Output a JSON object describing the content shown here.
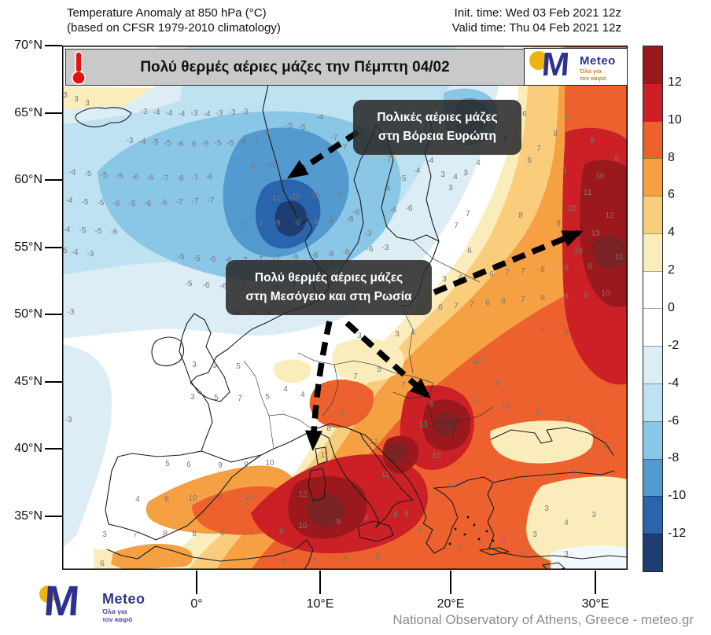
{
  "header": {
    "title_line1": "Temperature Anomaly at 850 hPa (°C)",
    "title_line2": "(based on CFSR 1979-2010 climatology)",
    "init_time": "Init. time: Wed 03 Feb 2021 12z",
    "valid_time": "Valid time: Thu 04 Feb 2021 12z"
  },
  "banner": {
    "text": "Πολύ θερμές αέριες μάζες την Πέμπτη 04/02",
    "icon": "thermometer-icon"
  },
  "logo": {
    "name": "Meteo",
    "tagline_line1": "Όλα για",
    "tagline_line2": "τον καιρό"
  },
  "annotations": [
    {
      "line1": "Πολικές αέριες μάζες",
      "line2": "στη Βόρεια Ευρώπη"
    },
    {
      "line1": "Πολύ θερμές αέριες μάζες",
      "line2": "στη Μεσόγειο και στη Ρωσία"
    }
  ],
  "footer": {
    "attribution": "National Observatory of Athens, Greece - meteo.gr"
  },
  "map": {
    "lat_ticks": [
      [
        "70°N",
        58
      ],
      [
        "65°N",
        144
      ],
      [
        "60°N",
        229
      ],
      [
        "55°N",
        315
      ],
      [
        "50°N",
        400
      ],
      [
        "45°N",
        486
      ],
      [
        "40°N",
        571
      ],
      [
        "35°N",
        657
      ]
    ],
    "lon_ticks": [
      [
        "0°",
        250
      ],
      [
        "10°E",
        407
      ],
      [
        "20°E",
        573
      ],
      [
        "30°E",
        757
      ]
    ],
    "values": [
      [
        4,
        66,
        "3"
      ],
      [
        18,
        71,
        "3"
      ],
      [
        32,
        76,
        "3"
      ],
      [
        104,
        87,
        "-3"
      ],
      [
        120,
        88,
        "-4"
      ],
      [
        136,
        89,
        "-4"
      ],
      [
        152,
        90,
        "-4"
      ],
      [
        168,
        89,
        "-3"
      ],
      [
        184,
        90,
        "-4"
      ],
      [
        200,
        89,
        "-3"
      ],
      [
        216,
        88,
        "-3"
      ],
      [
        232,
        87,
        "-3"
      ],
      [
        259,
        114,
        "-6"
      ],
      [
        289,
        105,
        "-5"
      ],
      [
        305,
        107,
        "-5"
      ],
      [
        328,
        94,
        "-4"
      ],
      [
        346,
        120,
        "-7"
      ],
      [
        358,
        132,
        "-7"
      ],
      [
        414,
        148,
        "-7"
      ],
      [
        433,
        172,
        "-5"
      ],
      [
        451,
        162,
        "-4"
      ],
      [
        468,
        149,
        "-4"
      ],
      [
        413,
        185,
        "-4"
      ],
      [
        389,
        242,
        "-3"
      ],
      [
        374,
        215,
        "-6"
      ],
      [
        86,
        124,
        "-3"
      ],
      [
        102,
        125,
        "-4"
      ],
      [
        118,
        126,
        "-5"
      ],
      [
        134,
        127,
        "-5"
      ],
      [
        150,
        128,
        "-6"
      ],
      [
        166,
        128,
        "-6"
      ],
      [
        182,
        128,
        "-5"
      ],
      [
        198,
        127,
        "-5"
      ],
      [
        214,
        127,
        "-5"
      ],
      [
        230,
        126,
        "-6"
      ],
      [
        246,
        125,
        "-7"
      ],
      [
        13,
        164,
        "-4"
      ],
      [
        33,
        166,
        "-5"
      ],
      [
        53,
        168,
        "-5"
      ],
      [
        73,
        169,
        "-5"
      ],
      [
        93,
        170,
        "-6"
      ],
      [
        112,
        171,
        "-6"
      ],
      [
        131,
        172,
        "-7"
      ],
      [
        150,
        172,
        "-8"
      ],
      [
        169,
        171,
        "-7"
      ],
      [
        187,
        170,
        "-6"
      ],
      [
        241,
        157,
        "-8"
      ],
      [
        264,
        155,
        "-10"
      ],
      [
        9,
        200,
        "-4"
      ],
      [
        29,
        202,
        "-5"
      ],
      [
        49,
        203,
        "-5"
      ],
      [
        69,
        204,
        "-6"
      ],
      [
        89,
        204,
        "-5"
      ],
      [
        109,
        204,
        "-6"
      ],
      [
        129,
        203,
        "-6"
      ],
      [
        149,
        202,
        "-7"
      ],
      [
        169,
        201,
        "-7"
      ],
      [
        189,
        200,
        "-7"
      ],
      [
        271,
        197,
        "-11"
      ],
      [
        296,
        195,
        "-10"
      ],
      [
        321,
        194,
        "-10"
      ],
      [
        351,
        192,
        "-9"
      ],
      [
        6,
        237,
        "-4"
      ],
      [
        26,
        238,
        "-5"
      ],
      [
        46,
        239,
        "-5"
      ],
      [
        66,
        240,
        "-6"
      ],
      [
        231,
        232,
        "-7"
      ],
      [
        251,
        230,
        "-7"
      ],
      [
        273,
        229,
        "-9"
      ],
      [
        299,
        228,
        "-8"
      ],
      [
        321,
        227,
        "-8"
      ],
      [
        341,
        226,
        "-8"
      ],
      [
        366,
        224,
        "-8"
      ],
      [
        421,
        212,
        "-6"
      ],
      [
        441,
        210,
        "-6"
      ],
      [
        2,
        264,
        "-5"
      ],
      [
        16,
        266,
        "-4"
      ],
      [
        36,
        268,
        "-3"
      ],
      [
        151,
        272,
        "-5"
      ],
      [
        171,
        274,
        "-5"
      ],
      [
        191,
        275,
        "-6"
      ],
      [
        211,
        276,
        "-6"
      ],
      [
        231,
        276,
        "-7"
      ],
      [
        251,
        275,
        "-7"
      ],
      [
        273,
        273,
        "-7"
      ],
      [
        296,
        272,
        "-9"
      ],
      [
        321,
        270,
        "-8"
      ],
      [
        341,
        268,
        "-8"
      ],
      [
        361,
        266,
        "-8"
      ],
      [
        391,
        262,
        "-6"
      ],
      [
        411,
        260,
        "-3"
      ],
      [
        161,
        306,
        "-5"
      ],
      [
        183,
        308,
        "-6"
      ],
      [
        205,
        309,
        "-6"
      ],
      [
        227,
        310,
        "-7"
      ],
      [
        249,
        310,
        "-7"
      ],
      [
        271,
        309,
        "-8"
      ],
      [
        293,
        308,
        "-7"
      ],
      [
        316,
        306,
        "-6"
      ],
      [
        341,
        304,
        "-6"
      ],
      [
        366,
        302,
        "-4"
      ],
      [
        391,
        300,
        "-3"
      ],
      [
        11,
        342,
        "-3"
      ],
      [
        221,
        342,
        "-4"
      ],
      [
        241,
        342,
        "-4"
      ],
      [
        261,
        341,
        "-3"
      ],
      [
        8,
        479,
        "-3"
      ],
      [
        588,
        90,
        "6"
      ],
      [
        643,
        97,
        "7"
      ],
      [
        627,
        115,
        "8"
      ],
      [
        606,
        134,
        "7"
      ],
      [
        674,
        124,
        "8"
      ],
      [
        705,
        147,
        "9"
      ],
      [
        639,
        162,
        "8"
      ],
      [
        684,
        169,
        "10"
      ],
      [
        668,
        190,
        "11"
      ],
      [
        648,
        210,
        "10"
      ],
      [
        696,
        219,
        "12"
      ],
      [
        678,
        242,
        "13"
      ],
      [
        631,
        229,
        "9"
      ],
      [
        583,
        219,
        "8"
      ],
      [
        564,
        122,
        "5"
      ],
      [
        594,
        149,
        "6"
      ],
      [
        529,
        152,
        "4"
      ],
      [
        513,
        165,
        "3"
      ],
      [
        494,
        184,
        "3"
      ],
      [
        516,
        217,
        "7"
      ],
      [
        501,
        232,
        "7"
      ],
      [
        518,
        264,
        "6"
      ],
      [
        656,
        264,
        "10"
      ],
      [
        708,
        272,
        "11"
      ],
      [
        484,
        167,
        "3"
      ],
      [
        500,
        170,
        "4"
      ],
      [
        486,
        300,
        "3"
      ],
      [
        506,
        298,
        "4"
      ],
      [
        526,
        296,
        "5"
      ],
      [
        546,
        294,
        "6"
      ],
      [
        566,
        292,
        "7"
      ],
      [
        586,
        290,
        "7"
      ],
      [
        611,
        288,
        "8"
      ],
      [
        641,
        286,
        "8"
      ],
      [
        671,
        284,
        "9"
      ],
      [
        481,
        336,
        "6"
      ],
      [
        501,
        334,
        "7"
      ],
      [
        521,
        332,
        "7"
      ],
      [
        541,
        330,
        "6"
      ],
      [
        561,
        328,
        "6"
      ],
      [
        586,
        326,
        "7"
      ],
      [
        611,
        324,
        "8"
      ],
      [
        641,
        322,
        "8"
      ],
      [
        666,
        320,
        "9"
      ],
      [
        691,
        318,
        "10"
      ],
      [
        378,
        372,
        "3"
      ],
      [
        426,
        370,
        "3"
      ],
      [
        446,
        368,
        "4"
      ],
      [
        403,
        415,
        "5"
      ],
      [
        284,
        440,
        "4"
      ],
      [
        306,
        447,
        "4"
      ],
      [
        373,
        424,
        "7"
      ],
      [
        611,
        365,
        "8"
      ],
      [
        641,
        368,
        "9"
      ],
      [
        528,
        404,
        "10"
      ],
      [
        554,
        432,
        "9"
      ],
      [
        168,
        409,
        "3"
      ],
      [
        194,
        410,
        "3"
      ],
      [
        224,
        411,
        "5"
      ],
      [
        166,
        450,
        "3"
      ],
      [
        196,
        451,
        "5"
      ],
      [
        226,
        452,
        "7"
      ],
      [
        261,
        450,
        "5"
      ],
      [
        434,
        435,
        "7"
      ],
      [
        469,
        459,
        "8"
      ],
      [
        524,
        455,
        "9"
      ],
      [
        564,
        462,
        "10"
      ],
      [
        604,
        470,
        "8"
      ],
      [
        644,
        478,
        "7"
      ],
      [
        674,
        486,
        "5"
      ],
      [
        691,
        515,
        "5"
      ],
      [
        356,
        470,
        "9"
      ],
      [
        339,
        490,
        "8"
      ],
      [
        459,
        485,
        "13"
      ],
      [
        476,
        525,
        "10"
      ],
      [
        396,
        507,
        "12"
      ],
      [
        411,
        549,
        "11"
      ],
      [
        334,
        524,
        "11"
      ],
      [
        494,
        565,
        "7"
      ],
      [
        455,
        618,
        "9"
      ],
      [
        134,
        535,
        "5"
      ],
      [
        161,
        536,
        "6"
      ],
      [
        201,
        537,
        "9"
      ],
      [
        234,
        536,
        "9"
      ],
      [
        264,
        534,
        "10"
      ],
      [
        96,
        580,
        "4"
      ],
      [
        133,
        580,
        "8"
      ],
      [
        166,
        579,
        "10"
      ],
      [
        201,
        578,
        "9"
      ],
      [
        238,
        577,
        "11"
      ],
      [
        306,
        574,
        "12"
      ],
      [
        54,
        625,
        "3"
      ],
      [
        93,
        625,
        "7"
      ],
      [
        131,
        624,
        "8"
      ],
      [
        168,
        624,
        "8"
      ],
      [
        204,
        623,
        "8"
      ],
      [
        241,
        622,
        "7"
      ],
      [
        279,
        621,
        "6"
      ],
      [
        306,
        614,
        "10"
      ],
      [
        351,
        609,
        "9"
      ],
      [
        387,
        604,
        "8"
      ],
      [
        424,
        600,
        "8"
      ],
      [
        438,
        599,
        "8"
      ],
      [
        51,
        662,
        "6"
      ],
      [
        283,
        660,
        "5"
      ],
      [
        321,
        658,
        "6"
      ],
      [
        361,
        656,
        "6"
      ],
      [
        401,
        654,
        "6"
      ],
      [
        506,
        642,
        "5"
      ],
      [
        561,
        632,
        "5"
      ],
      [
        586,
        648,
        "4"
      ],
      [
        616,
        592,
        "3"
      ],
      [
        601,
        625,
        "3"
      ],
      [
        641,
        610,
        "4"
      ],
      [
        676,
        600,
        "3"
      ],
      [
        641,
        650,
        "3"
      ]
    ]
  },
  "colorbar": {
    "labels": [
      "12",
      "10",
      "8",
      "6",
      "4",
      "2",
      "0",
      "-2",
      "-4",
      "-6",
      "-8",
      "-10",
      "-12"
    ],
    "colors": [
      "#9B191C",
      "#CC2027",
      "#EC612E",
      "#F5A043",
      "#FACD7D",
      "#FBEDBB",
      "#FFFFFF",
      "#FFFFFF",
      "#DCEDF6",
      "#BFE2F2",
      "#8AC6E6",
      "#539ACF",
      "#2A64AC",
      "#1E3D72"
    ]
  },
  "colors": {
    "meteo_blue": "#2E3192",
    "logo_dot_yellow": "#EFB310",
    "banner_gray": "#C9C9C9",
    "callout_bg": "#282828",
    "thermometer_red": "#E8100C",
    "attribution_gray": "#8C8C8C",
    "grid_value_gray": "#777777",
    "arrow_black": "#000000"
  }
}
